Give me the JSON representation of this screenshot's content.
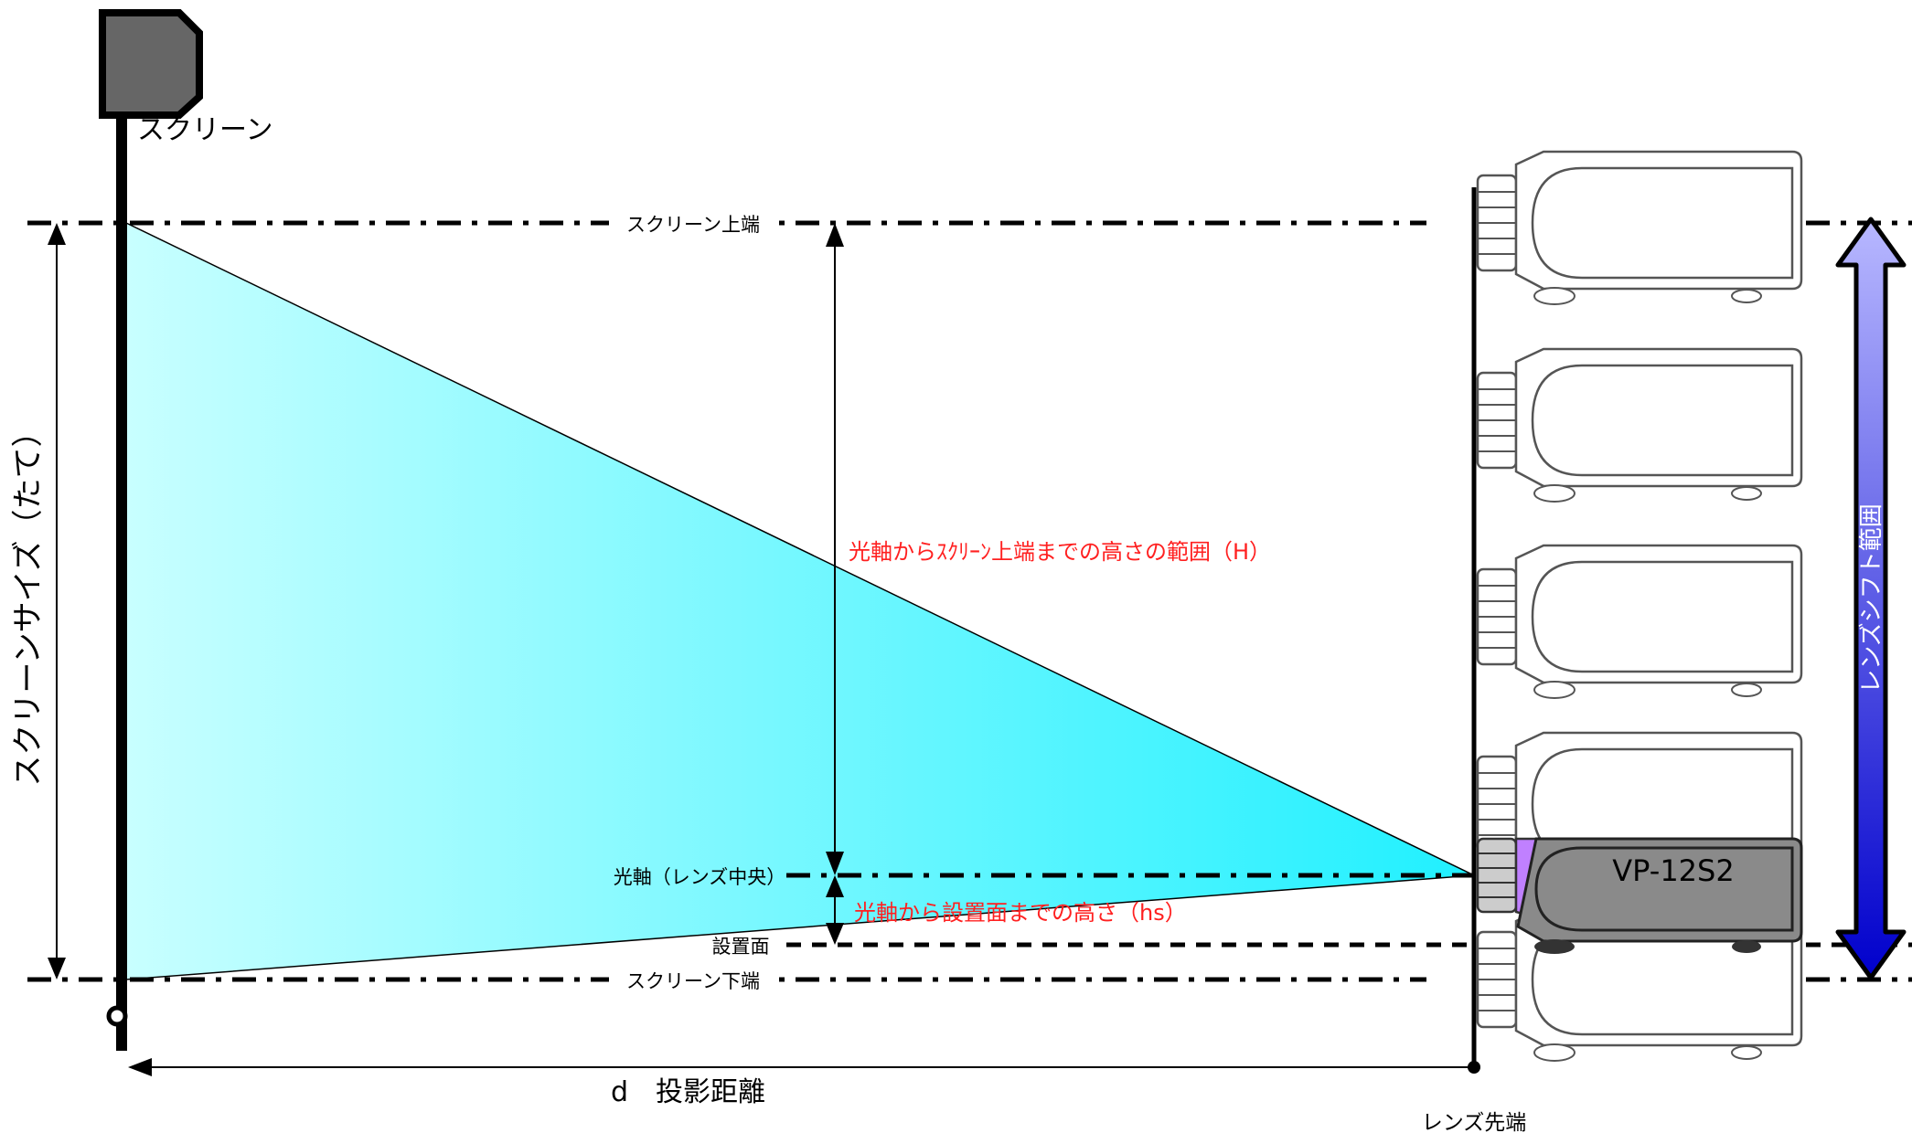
{
  "screen_label": "スクリーン",
  "screen_size_label": "スクリーンサイズ（たて）",
  "screen_top_label": "スクリーン上端",
  "screen_bottom_label": "スクリーン下端",
  "optical_axis_label": "光軸（レンズ中央）",
  "install_surface_label": "設置面",
  "height_range_label": "光軸からｽｸﾘｰﾝ上端までの高さの範囲（H）",
  "height_hs_label": "光軸から設置面までの高さ（hs）",
  "distance_label": "d　投影距離",
  "lens_tip_label": "レンズ先端",
  "lens_shift_label": "レンズシフト範囲",
  "projector_model": "VP-12S2",
  "colors": {
    "beam_light": "#c8ffff",
    "beam_dark": "#20f0ff",
    "highlight_projector": "#8a8a8a",
    "lens_purple": "#c080ff",
    "shift_arrow_dark": "#0000cc",
    "shift_arrow_light": "#b8b8ff",
    "annotation_red": "#ff2020"
  }
}
